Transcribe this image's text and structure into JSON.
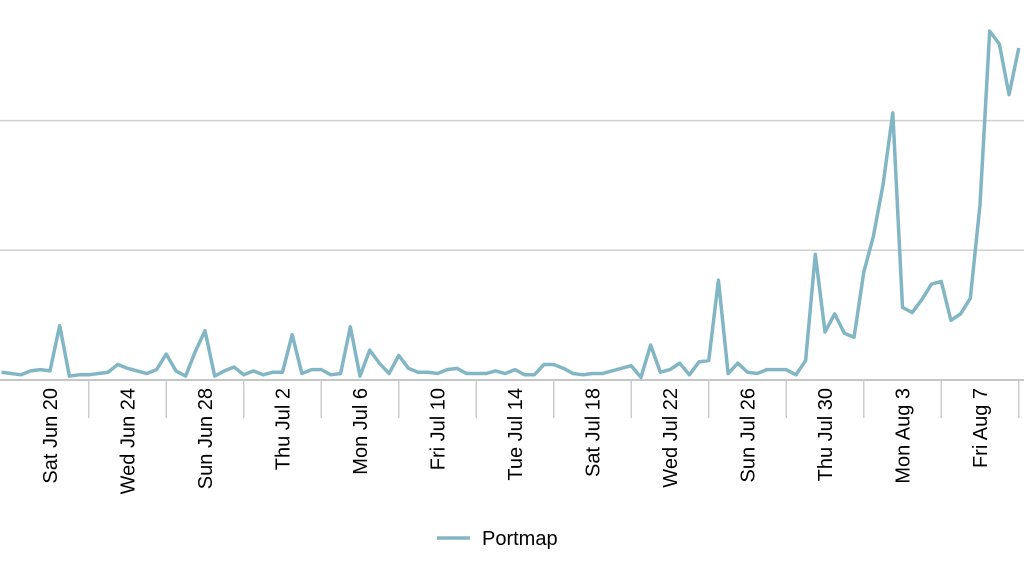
{
  "chart_data": {
    "type": "line",
    "categories": [
      null,
      null,
      null,
      null,
      null,
      "Sat Jun 20",
      null,
      null,
      null,
      null,
      null,
      null,
      null,
      "Wed Jun 24",
      null,
      null,
      null,
      null,
      null,
      null,
      null,
      "Sun Jun 28",
      null,
      null,
      null,
      null,
      null,
      null,
      null,
      "Thu Jul 2",
      null,
      null,
      null,
      null,
      null,
      null,
      null,
      "Mon Jul 6",
      null,
      null,
      null,
      null,
      null,
      null,
      null,
      "Fri Jul 10",
      null,
      null,
      null,
      null,
      null,
      null,
      null,
      "Tue Jul 14",
      null,
      null,
      null,
      null,
      null,
      null,
      null,
      "Sat Jul 18",
      null,
      null,
      null,
      null,
      null,
      null,
      null,
      "Wed Jul 22",
      null,
      null,
      null,
      null,
      null,
      null,
      null,
      "Sun Jul 26",
      null,
      null,
      null,
      null,
      null,
      null,
      null,
      "Thu Jul 30",
      null,
      null,
      null,
      null,
      null,
      null,
      null,
      "Mon Aug 3",
      null,
      null,
      null,
      null,
      null,
      null,
      null,
      "Fri Aug 7",
      null,
      null,
      null,
      null
    ],
    "series": [
      {
        "name": "Portmap",
        "color": "#83b6c5",
        "values": [
          6,
          5,
          4,
          7,
          8,
          7,
          42,
          3,
          4,
          4,
          5,
          6,
          12,
          9,
          7,
          5,
          8,
          20,
          7,
          3,
          22,
          38,
          3,
          7,
          10,
          4,
          7,
          4,
          6,
          6,
          35,
          5,
          8,
          8,
          4,
          5,
          41,
          3,
          23,
          13,
          5,
          19,
          9,
          6,
          6,
          5,
          8,
          9,
          5,
          5,
          5,
          7,
          5,
          8,
          4,
          4,
          12,
          12,
          9,
          5,
          4,
          5,
          5,
          7,
          9,
          11,
          2,
          27,
          6,
          8,
          13,
          4,
          14,
          15,
          77,
          5,
          13,
          6,
          5,
          8,
          8,
          8,
          4,
          15,
          97,
          37,
          51,
          36,
          33,
          83,
          111,
          151,
          206,
          56,
          52,
          62,
          74,
          76,
          46,
          51,
          63,
          135,
          269,
          259,
          220,
          256
        ]
      }
    ],
    "ylim": [
      0,
      293
    ],
    "yticks": [
      0,
      100,
      200
    ],
    "grid": true,
    "legend": "bottom"
  }
}
